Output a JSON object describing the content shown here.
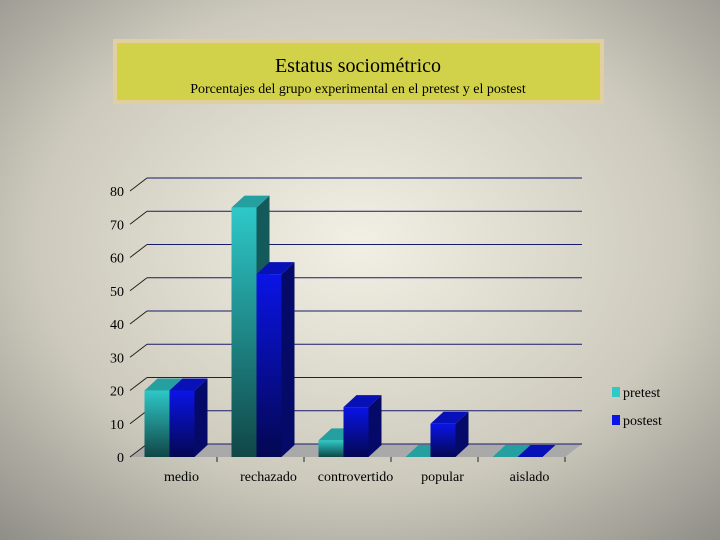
{
  "chart_data": {
    "type": "bar3d",
    "title": "Estatus sociométrico",
    "subtitle": "Porcentajes del grupo experimental en el pretest y el postest",
    "categories": [
      "medio",
      "rechazado",
      "controvertido",
      "popular",
      "aislado"
    ],
    "series": [
      {
        "name": "pretest",
        "color": "#2ec8c8",
        "values": [
          20,
          75,
          5,
          0,
          0
        ]
      },
      {
        "name": "postest",
        "color": "#0a14e6",
        "values": [
          20,
          55,
          15,
          10,
          0
        ]
      }
    ],
    "ylim": [
      0,
      80
    ],
    "yticks": [
      0,
      10,
      20,
      30,
      40,
      50,
      60,
      70,
      80
    ],
    "grid": true,
    "legend": "right"
  }
}
